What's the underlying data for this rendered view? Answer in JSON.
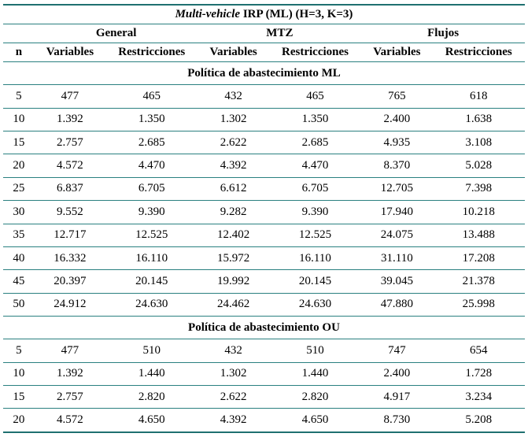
{
  "title": {
    "italic": "Multi-vehicle",
    "rest": " IRP (ML) (H=3, K=3)"
  },
  "columns": {
    "n_label": "n",
    "groups": [
      "General",
      "MTZ",
      "Flujos"
    ],
    "sub_labels": [
      "Variables",
      "Restricciones"
    ]
  },
  "colors": {
    "rule": "#1f7070",
    "text": "#000000",
    "background": "#ffffff"
  },
  "sections": [
    {
      "header": "Política de abastecimiento ML",
      "rows": [
        [
          "5",
          "477",
          "465",
          "432",
          "465",
          "765",
          "618"
        ],
        [
          "10",
          "1.392",
          "1.350",
          "1.302",
          "1.350",
          "2.400",
          "1.638"
        ],
        [
          "15",
          "2.757",
          "2.685",
          "2.622",
          "2.685",
          "4.935",
          "3.108"
        ],
        [
          "20",
          "4.572",
          "4.470",
          "4.392",
          "4.470",
          "8.370",
          "5.028"
        ],
        [
          "25",
          "6.837",
          "6.705",
          "6.612",
          "6.705",
          "12.705",
          "7.398"
        ],
        [
          "30",
          "9.552",
          "9.390",
          "9.282",
          "9.390",
          "17.940",
          "10.218"
        ],
        [
          "35",
          "12.717",
          "12.525",
          "12.402",
          "12.525",
          "24.075",
          "13.488"
        ],
        [
          "40",
          "16.332",
          "16.110",
          "15.972",
          "16.110",
          "31.110",
          "17.208"
        ],
        [
          "45",
          "20.397",
          "20.145",
          "19.992",
          "20.145",
          "39.045",
          "21.378"
        ],
        [
          "50",
          "24.912",
          "24.630",
          "24.462",
          "24.630",
          "47.880",
          "25.998"
        ]
      ]
    },
    {
      "header": "Política de abastecimiento OU",
      "rows": [
        [
          "5",
          "477",
          "510",
          "432",
          "510",
          "747",
          "654"
        ],
        [
          "10",
          "1.392",
          "1.440",
          "1.302",
          "1.440",
          "2.400",
          "1.728"
        ],
        [
          "15",
          "2.757",
          "2.820",
          "2.622",
          "2.820",
          "4.917",
          "3.234"
        ],
        [
          "20",
          "4.572",
          "4.650",
          "4.392",
          "4.650",
          "8.730",
          "5.208"
        ]
      ]
    }
  ]
}
